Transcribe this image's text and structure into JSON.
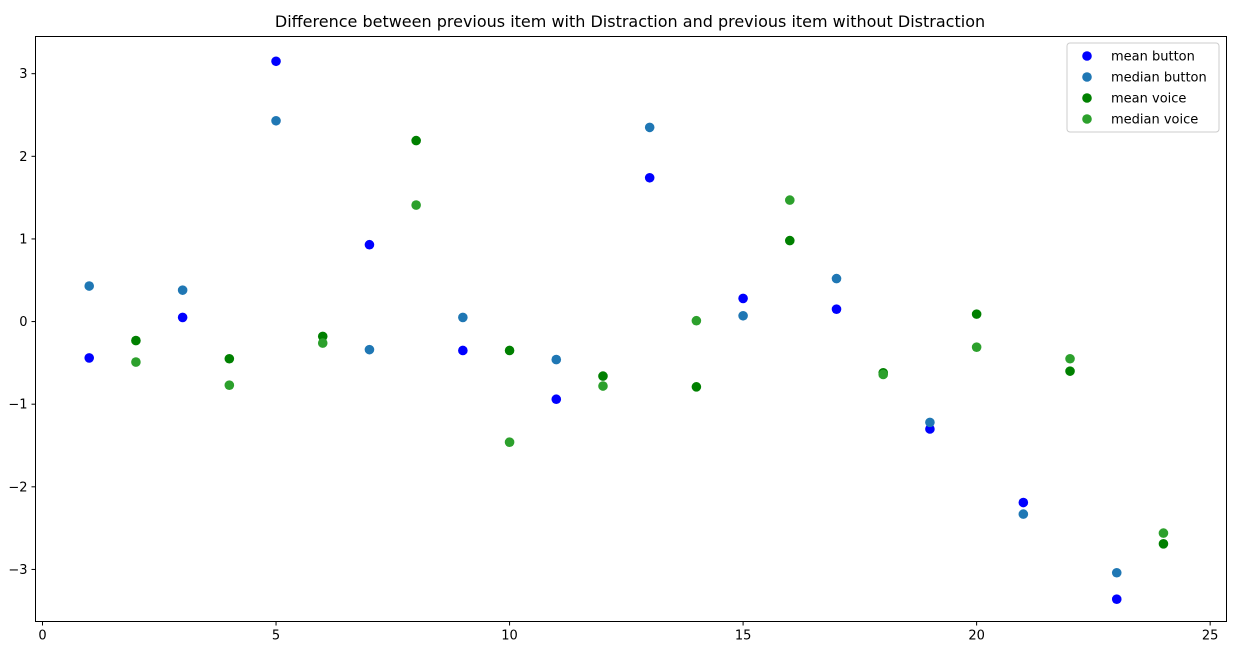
{
  "chart_data": {
    "type": "scatter",
    "title": "Difference between previous item with Distraction and previous item without Distraction",
    "xlabel": "",
    "ylabel": "",
    "xlim": [
      -0.15,
      25.35
    ],
    "ylim": [
      -3.63,
      3.45
    ],
    "xticks": [
      0,
      5,
      10,
      15,
      20,
      25
    ],
    "yticks": [
      -3,
      -2,
      -1,
      0,
      1,
      2,
      3
    ],
    "grid": false,
    "legend_position": "top-right",
    "series": [
      {
        "name": "mean button",
        "color": "#0000ff",
        "points": [
          {
            "x": 1,
            "y": -0.44
          },
          {
            "x": 3,
            "y": 0.05
          },
          {
            "x": 5,
            "y": 3.15
          },
          {
            "x": 7,
            "y": 0.93
          },
          {
            "x": 9,
            "y": -0.35
          },
          {
            "x": 11,
            "y": -0.94
          },
          {
            "x": 13,
            "y": 1.74
          },
          {
            "x": 15,
            "y": 0.28
          },
          {
            "x": 17,
            "y": 0.15
          },
          {
            "x": 19,
            "y": -1.3
          },
          {
            "x": 21,
            "y": -2.19
          },
          {
            "x": 23,
            "y": -3.36
          }
        ]
      },
      {
        "name": "median button",
        "color": "#1f77b4",
        "points": [
          {
            "x": 1,
            "y": 0.43
          },
          {
            "x": 3,
            "y": 0.38
          },
          {
            "x": 5,
            "y": 2.43
          },
          {
            "x": 7,
            "y": -0.34
          },
          {
            "x": 9,
            "y": 0.05
          },
          {
            "x": 11,
            "y": -0.46
          },
          {
            "x": 13,
            "y": 2.35
          },
          {
            "x": 15,
            "y": 0.07
          },
          {
            "x": 17,
            "y": 0.52
          },
          {
            "x": 19,
            "y": -1.22
          },
          {
            "x": 21,
            "y": -2.33
          },
          {
            "x": 23,
            "y": -3.04
          }
        ]
      },
      {
        "name": "mean voice",
        "color": "#008000",
        "points": [
          {
            "x": 2,
            "y": -0.23
          },
          {
            "x": 4,
            "y": -0.45
          },
          {
            "x": 6,
            "y": -0.18
          },
          {
            "x": 8,
            "y": 2.19
          },
          {
            "x": 10,
            "y": -0.35
          },
          {
            "x": 12,
            "y": -0.66
          },
          {
            "x": 14,
            "y": -0.79
          },
          {
            "x": 16,
            "y": 0.98
          },
          {
            "x": 18,
            "y": -0.62
          },
          {
            "x": 20,
            "y": 0.09
          },
          {
            "x": 22,
            "y": -0.6
          },
          {
            "x": 24,
            "y": -2.69
          }
        ]
      },
      {
        "name": "median voice",
        "color": "#2ca02c",
        "points": [
          {
            "x": 2,
            "y": -0.49
          },
          {
            "x": 4,
            "y": -0.77
          },
          {
            "x": 6,
            "y": -0.26
          },
          {
            "x": 8,
            "y": 1.41
          },
          {
            "x": 10,
            "y": -1.46
          },
          {
            "x": 12,
            "y": -0.78
          },
          {
            "x": 14,
            "y": 0.01
          },
          {
            "x": 16,
            "y": 1.47
          },
          {
            "x": 18,
            "y": -0.64
          },
          {
            "x": 20,
            "y": -0.31
          },
          {
            "x": 22,
            "y": -0.45
          },
          {
            "x": 24,
            "y": -2.56
          }
        ]
      }
    ]
  }
}
